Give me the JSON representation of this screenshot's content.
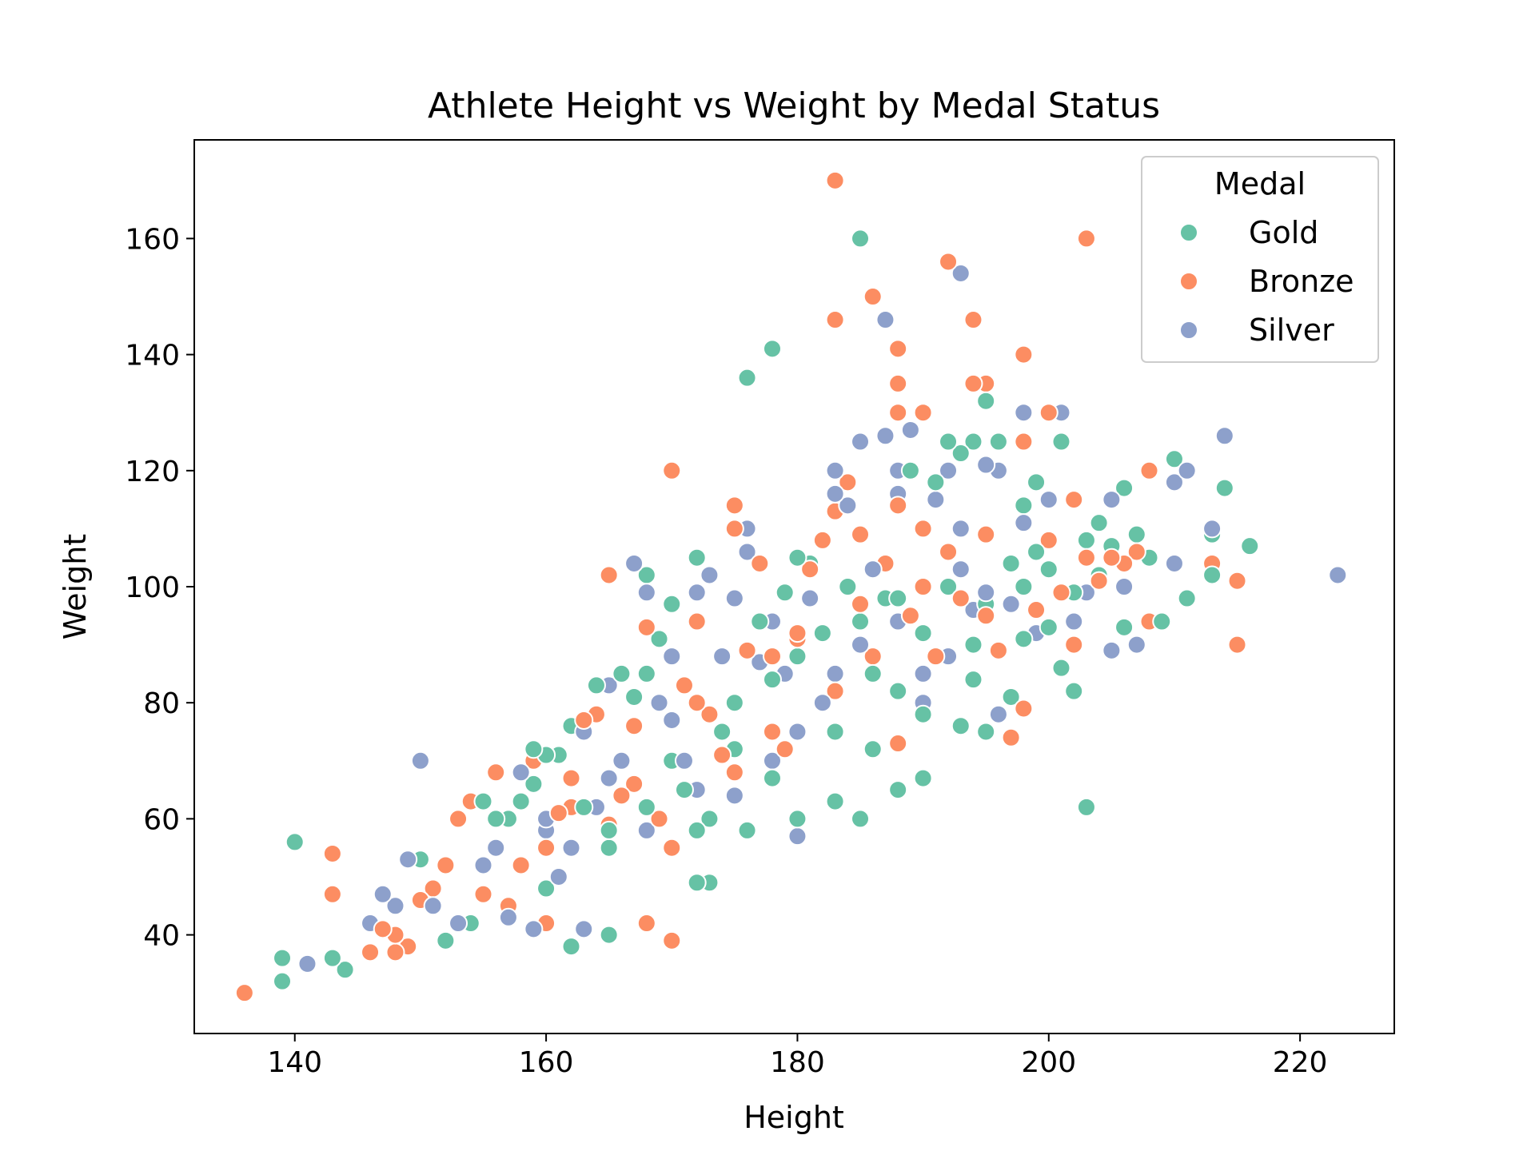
{
  "chart_data": {
    "type": "scatter",
    "title": "Athlete Height vs Weight by Medal Status",
    "xlabel": "Height",
    "ylabel": "Weight",
    "xlim": [
      132,
      227.5
    ],
    "ylim": [
      23,
      177
    ],
    "xticks": [
      140,
      160,
      180,
      200,
      220
    ],
    "yticks": [
      40,
      60,
      80,
      100,
      120,
      140,
      160
    ],
    "legend": {
      "title": "Medal",
      "placement": "top-right",
      "entries": [
        "Gold",
        "Bronze",
        "Silver"
      ]
    },
    "colors": {
      "Gold": "#66c2a5",
      "Bronze": "#fc8d62",
      "Silver": "#8da0cb"
    },
    "grid": false,
    "series": [
      {
        "name": "Gold",
        "points": [
          [
            139,
            36
          ],
          [
            139,
            32
          ],
          [
            140,
            56
          ],
          [
            143,
            36
          ],
          [
            144,
            34
          ],
          [
            150,
            53
          ],
          [
            152,
            39
          ],
          [
            154,
            42
          ],
          [
            155,
            63
          ],
          [
            156,
            60
          ],
          [
            157,
            60
          ],
          [
            158,
            63
          ],
          [
            159,
            66
          ],
          [
            159,
            72
          ],
          [
            160,
            71
          ],
          [
            161,
            71
          ],
          [
            162,
            38
          ],
          [
            162,
            76
          ],
          [
            163,
            62
          ],
          [
            164,
            83
          ],
          [
            165,
            40
          ],
          [
            165,
            58
          ],
          [
            166,
            85
          ],
          [
            167,
            81
          ],
          [
            168,
            102
          ],
          [
            168,
            85
          ],
          [
            169,
            91
          ],
          [
            170,
            97
          ],
          [
            171,
            65
          ],
          [
            172,
            105
          ],
          [
            172,
            49
          ],
          [
            173,
            49
          ],
          [
            173,
            60
          ],
          [
            174,
            75
          ],
          [
            175,
            72
          ],
          [
            176,
            136
          ],
          [
            176,
            58
          ],
          [
            177,
            94
          ],
          [
            178,
            141
          ],
          [
            178,
            67
          ],
          [
            179,
            99
          ],
          [
            180,
            105
          ],
          [
            180,
            88
          ],
          [
            181,
            104
          ],
          [
            182,
            92
          ],
          [
            183,
            120
          ],
          [
            183,
            63
          ],
          [
            184,
            100
          ],
          [
            185,
            160
          ],
          [
            185,
            60
          ],
          [
            185,
            94
          ],
          [
            186,
            72
          ],
          [
            187,
            98
          ],
          [
            188,
            65
          ],
          [
            188,
            82
          ],
          [
            189,
            120
          ],
          [
            190,
            78
          ],
          [
            190,
            67
          ],
          [
            191,
            118
          ],
          [
            192,
            125
          ],
          [
            193,
            123
          ],
          [
            193,
            76
          ],
          [
            194,
            125
          ],
          [
            194,
            90
          ],
          [
            195,
            132
          ],
          [
            195,
            75
          ],
          [
            196,
            125
          ],
          [
            197,
            104
          ],
          [
            197,
            81
          ],
          [
            198,
            114
          ],
          [
            198,
            91
          ],
          [
            199,
            118
          ],
          [
            199,
            106
          ],
          [
            200,
            103
          ],
          [
            200,
            93
          ],
          [
            201,
            125
          ],
          [
            201,
            86
          ],
          [
            202,
            82
          ],
          [
            202,
            99
          ],
          [
            203,
            108
          ],
          [
            203,
            62
          ],
          [
            204,
            111
          ],
          [
            204,
            102
          ],
          [
            205,
            107
          ],
          [
            206,
            117
          ],
          [
            206,
            93
          ],
          [
            207,
            109
          ],
          [
            208,
            105
          ],
          [
            209,
            94
          ],
          [
            210,
            122
          ],
          [
            211,
            98
          ],
          [
            213,
            109
          ],
          [
            213,
            102
          ],
          [
            214,
            117
          ],
          [
            216,
            107
          ],
          [
            180,
            60
          ],
          [
            183,
            75
          ],
          [
            186,
            85
          ],
          [
            190,
            92
          ],
          [
            195,
            97
          ],
          [
            170,
            70
          ],
          [
            175,
            80
          ],
          [
            165,
            55
          ],
          [
            160,
            48
          ],
          [
            192,
            100
          ],
          [
            188,
            98
          ],
          [
            178,
            84
          ],
          [
            172,
            58
          ],
          [
            168,
            62
          ],
          [
            194,
            84
          ],
          [
            198,
            100
          ]
        ]
      },
      {
        "name": "Bronze",
        "points": [
          [
            136,
            30
          ],
          [
            143,
            54
          ],
          [
            143,
            47
          ],
          [
            146,
            37
          ],
          [
            147,
            41
          ],
          [
            148,
            40
          ],
          [
            148,
            37
          ],
          [
            149,
            38
          ],
          [
            150,
            46
          ],
          [
            151,
            48
          ],
          [
            152,
            52
          ],
          [
            153,
            60
          ],
          [
            154,
            63
          ],
          [
            155,
            47
          ],
          [
            156,
            68
          ],
          [
            157,
            45
          ],
          [
            158,
            52
          ],
          [
            159,
            70
          ],
          [
            160,
            42
          ],
          [
            161,
            61
          ],
          [
            162,
            67
          ],
          [
            163,
            77
          ],
          [
            164,
            78
          ],
          [
            165,
            102
          ],
          [
            166,
            64
          ],
          [
            167,
            76
          ],
          [
            168,
            93
          ],
          [
            168,
            42
          ],
          [
            169,
            60
          ],
          [
            170,
            120
          ],
          [
            170,
            39
          ],
          [
            171,
            83
          ],
          [
            172,
            94
          ],
          [
            173,
            78
          ],
          [
            174,
            71
          ],
          [
            175,
            114
          ],
          [
            175,
            110
          ],
          [
            176,
            89
          ],
          [
            177,
            104
          ],
          [
            178,
            88
          ],
          [
            179,
            72
          ],
          [
            180,
            91
          ],
          [
            181,
            103
          ],
          [
            182,
            108
          ],
          [
            183,
            170
          ],
          [
            183,
            146
          ],
          [
            183,
            113
          ],
          [
            184,
            118
          ],
          [
            185,
            109
          ],
          [
            186,
            150
          ],
          [
            186,
            88
          ],
          [
            187,
            104
          ],
          [
            188,
            141
          ],
          [
            188,
            135
          ],
          [
            188,
            130
          ],
          [
            188,
            114
          ],
          [
            189,
            95
          ],
          [
            190,
            130
          ],
          [
            190,
            110
          ],
          [
            191,
            88
          ],
          [
            192,
            156
          ],
          [
            192,
            106
          ],
          [
            193,
            98
          ],
          [
            194,
            146
          ],
          [
            194,
            135
          ],
          [
            195,
            135
          ],
          [
            195,
            109
          ],
          [
            196,
            89
          ],
          [
            197,
            74
          ],
          [
            198,
            140
          ],
          [
            198,
            125
          ],
          [
            198,
            79
          ],
          [
            199,
            96
          ],
          [
            200,
            130
          ],
          [
            200,
            108
          ],
          [
            201,
            99
          ],
          [
            202,
            115
          ],
          [
            202,
            90
          ],
          [
            203,
            160
          ],
          [
            203,
            105
          ],
          [
            204,
            101
          ],
          [
            205,
            105
          ],
          [
            206,
            104
          ],
          [
            207,
            106
          ],
          [
            208,
            120
          ],
          [
            208,
            94
          ],
          [
            213,
            104
          ],
          [
            215,
            101
          ],
          [
            215,
            90
          ],
          [
            180,
            92
          ],
          [
            185,
            97
          ],
          [
            175,
            68
          ],
          [
            170,
            55
          ],
          [
            165,
            59
          ],
          [
            160,
            55
          ],
          [
            190,
            100
          ],
          [
            195,
            95
          ],
          [
            178,
            75
          ],
          [
            183,
            82
          ],
          [
            172,
            80
          ],
          [
            167,
            66
          ],
          [
            162,
            62
          ],
          [
            188,
            73
          ]
        ]
      },
      {
        "name": "Silver",
        "points": [
          [
            141,
            35
          ],
          [
            146,
            42
          ],
          [
            147,
            47
          ],
          [
            148,
            45
          ],
          [
            149,
            53
          ],
          [
            150,
            70
          ],
          [
            151,
            45
          ],
          [
            153,
            42
          ],
          [
            155,
            52
          ],
          [
            156,
            55
          ],
          [
            157,
            43
          ],
          [
            158,
            68
          ],
          [
            159,
            41
          ],
          [
            160,
            58
          ],
          [
            161,
            50
          ],
          [
            162,
            55
          ],
          [
            163,
            41
          ],
          [
            163,
            75
          ],
          [
            164,
            62
          ],
          [
            165,
            83
          ],
          [
            166,
            70
          ],
          [
            167,
            104
          ],
          [
            168,
            99
          ],
          [
            169,
            80
          ],
          [
            170,
            88
          ],
          [
            171,
            70
          ],
          [
            172,
            99
          ],
          [
            173,
            102
          ],
          [
            174,
            88
          ],
          [
            175,
            98
          ],
          [
            176,
            110
          ],
          [
            176,
            106
          ],
          [
            177,
            87
          ],
          [
            178,
            94
          ],
          [
            179,
            85
          ],
          [
            180,
            57
          ],
          [
            181,
            98
          ],
          [
            182,
            80
          ],
          [
            183,
            120
          ],
          [
            183,
            116
          ],
          [
            184,
            114
          ],
          [
            185,
            125
          ],
          [
            186,
            103
          ],
          [
            187,
            146
          ],
          [
            187,
            126
          ],
          [
            188,
            120
          ],
          [
            188,
            116
          ],
          [
            189,
            127
          ],
          [
            190,
            80
          ],
          [
            191,
            115
          ],
          [
            192,
            120
          ],
          [
            193,
            154
          ],
          [
            193,
            110
          ],
          [
            193,
            103
          ],
          [
            194,
            96
          ],
          [
            195,
            121
          ],
          [
            196,
            120
          ],
          [
            197,
            97
          ],
          [
            198,
            130
          ],
          [
            198,
            111
          ],
          [
            199,
            92
          ],
          [
            200,
            115
          ],
          [
            201,
            130
          ],
          [
            202,
            94
          ],
          [
            203,
            99
          ],
          [
            204,
            101
          ],
          [
            205,
            115
          ],
          [
            205,
            89
          ],
          [
            206,
            100
          ],
          [
            207,
            90
          ],
          [
            210,
            118
          ],
          [
            210,
            104
          ],
          [
            211,
            120
          ],
          [
            213,
            110
          ],
          [
            214,
            126
          ],
          [
            223,
            102
          ],
          [
            180,
            75
          ],
          [
            185,
            90
          ],
          [
            175,
            64
          ],
          [
            170,
            77
          ],
          [
            165,
            67
          ],
          [
            160,
            60
          ],
          [
            190,
            85
          ],
          [
            195,
            99
          ],
          [
            178,
            70
          ],
          [
            183,
            85
          ],
          [
            188,
            94
          ],
          [
            172,
            65
          ],
          [
            168,
            58
          ],
          [
            192,
            88
          ],
          [
            196,
            78
          ]
        ]
      }
    ]
  }
}
